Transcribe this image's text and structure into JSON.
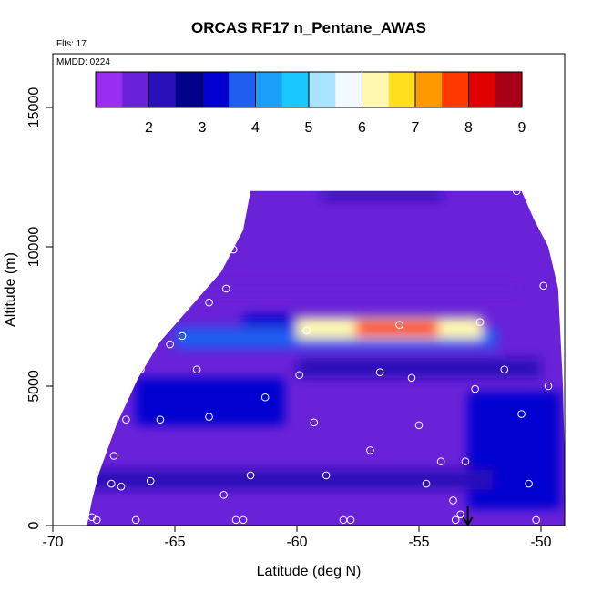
{
  "chart_data": {
    "type": "heatmap",
    "title": "ORCAS RF17 n_Pentane_AWAS",
    "annotations": {
      "flights": "Flts: 17",
      "date": "MMDD: 0224"
    },
    "xlabel": "Latitude (deg N)",
    "ylabel": "Altitude (m)",
    "xlim": [
      -70,
      -49
    ],
    "ylim": [
      0,
      16300
    ],
    "x_ticks": [
      -70,
      -65,
      -60,
      -55,
      -50
    ],
    "y_ticks": [
      0,
      5000,
      10000,
      15000
    ],
    "colorbar": {
      "ticks": [
        2,
        3,
        4,
        5,
        6,
        7,
        8,
        9
      ],
      "range": [
        1,
        9
      ],
      "colors": [
        "#9a2ef0",
        "#6a22d8",
        "#2a10b8",
        "#00008c",
        "#0000d0",
        "#1f5ff0",
        "#1a9ff8",
        "#18c8ff",
        "#a8e4ff",
        "#f4f8ff",
        "#fff8b0",
        "#ffdf1e",
        "#ff9900",
        "#ff3800",
        "#e00000",
        "#a80018"
      ]
    },
    "field": {
      "background_value": 1.5,
      "envelope": [
        [
          -68.6,
          0
        ],
        [
          -68.4,
          900
        ],
        [
          -68.1,
          1900
        ],
        [
          -67.4,
          3600
        ],
        [
          -66.5,
          5300
        ],
        [
          -65.6,
          6600
        ],
        [
          -64.3,
          7900
        ],
        [
          -63.1,
          9100
        ],
        [
          -62.2,
          10600
        ],
        [
          -61.9,
          12000
        ],
        [
          -50.8,
          12000
        ],
        [
          -50.3,
          11000
        ],
        [
          -49.7,
          10000
        ],
        [
          -49.3,
          8500
        ],
        [
          -49.1,
          5000
        ],
        [
          -49.0,
          900
        ],
        [
          -49.0,
          0
        ]
      ],
      "bands": [
        {
          "lat": [
            -62.2,
            -52.4
          ],
          "alt": [
            7150,
            7550
          ],
          "value": 3.4
        },
        {
          "lat": [
            -65.0,
            -51.8
          ],
          "alt": [
            6350,
            7100
          ],
          "value": 3.6
        },
        {
          "lat": [
            -60.0,
            -52.4
          ],
          "alt": [
            6700,
            7450
          ],
          "value": 6.2
        },
        {
          "lat": [
            -57.6,
            -54.2
          ],
          "alt": [
            6800,
            7350
          ],
          "value": 7.8
        },
        {
          "lat": [
            -66.6,
            -60.5
          ],
          "alt": [
            3600,
            5300
          ],
          "value": 3.2
        },
        {
          "lat": [
            -53.0,
            -49.2
          ],
          "alt": [
            600,
            4800
          ],
          "value": 3.0
        },
        {
          "lat": [
            -59.0,
            -54.0
          ],
          "alt": [
            11700,
            12000
          ],
          "value": 2.3
        },
        {
          "lat": [
            -68.5,
            -52.0
          ],
          "alt": [
            1300,
            2000
          ],
          "value": 2.0
        },
        {
          "lat": [
            -66.0,
            -51.0
          ],
          "alt": [
            8300,
            8700
          ],
          "value": 1.9
        },
        {
          "lat": [
            -60.0,
            -50.0
          ],
          "alt": [
            5300,
            6000
          ],
          "value": 2.1
        }
      ]
    },
    "samples": [
      [
        -68.4,
        300
      ],
      [
        -68.2,
        200
      ],
      [
        -67.6,
        1500
      ],
      [
        -67.5,
        2500
      ],
      [
        -67.2,
        1400
      ],
      [
        -67.0,
        3800
      ],
      [
        -66.6,
        200
      ],
      [
        -66.4,
        5600
      ],
      [
        -66.0,
        1600
      ],
      [
        -65.6,
        3800
      ],
      [
        -65.8,
        7600
      ],
      [
        -65.2,
        6500
      ],
      [
        -64.7,
        6800
      ],
      [
        -64.1,
        5600
      ],
      [
        -63.6,
        3900
      ],
      [
        -63.6,
        8000
      ],
      [
        -63.0,
        1100
      ],
      [
        -62.9,
        8500
      ],
      [
        -62.6,
        9900
      ],
      [
        -62.5,
        200
      ],
      [
        -62.2,
        200
      ],
      [
        -62.1,
        12000
      ],
      [
        -61.9,
        1800
      ],
      [
        -61.3,
        4600
      ],
      [
        -59.6,
        7000
      ],
      [
        -59.9,
        5400
      ],
      [
        -59.3,
        3700
      ],
      [
        -58.8,
        1800
      ],
      [
        -58.6,
        12200
      ],
      [
        -58.1,
        200
      ],
      [
        -57.8,
        200
      ],
      [
        -57.0,
        2700
      ],
      [
        -56.6,
        5500
      ],
      [
        -55.8,
        7200
      ],
      [
        -55.3,
        5300
      ],
      [
        -55.0,
        3600
      ],
      [
        -54.8,
        12300
      ],
      [
        -54.7,
        1500
      ],
      [
        -54.1,
        2300
      ],
      [
        -53.6,
        900
      ],
      [
        -53.5,
        200
      ],
      [
        -53.3,
        400
      ],
      [
        -53.1,
        2300
      ],
      [
        -52.7,
        4900
      ],
      [
        -52.5,
        7300
      ],
      [
        -51.5,
        5600
      ],
      [
        -51.0,
        12000
      ],
      [
        -50.8,
        4000
      ],
      [
        -50.5,
        1500
      ],
      [
        -50.2,
        200
      ],
      [
        -49.9,
        8600
      ],
      [
        -49.7,
        5000
      ]
    ],
    "marker": {
      "lat": -53.0,
      "label": "arrow"
    }
  }
}
